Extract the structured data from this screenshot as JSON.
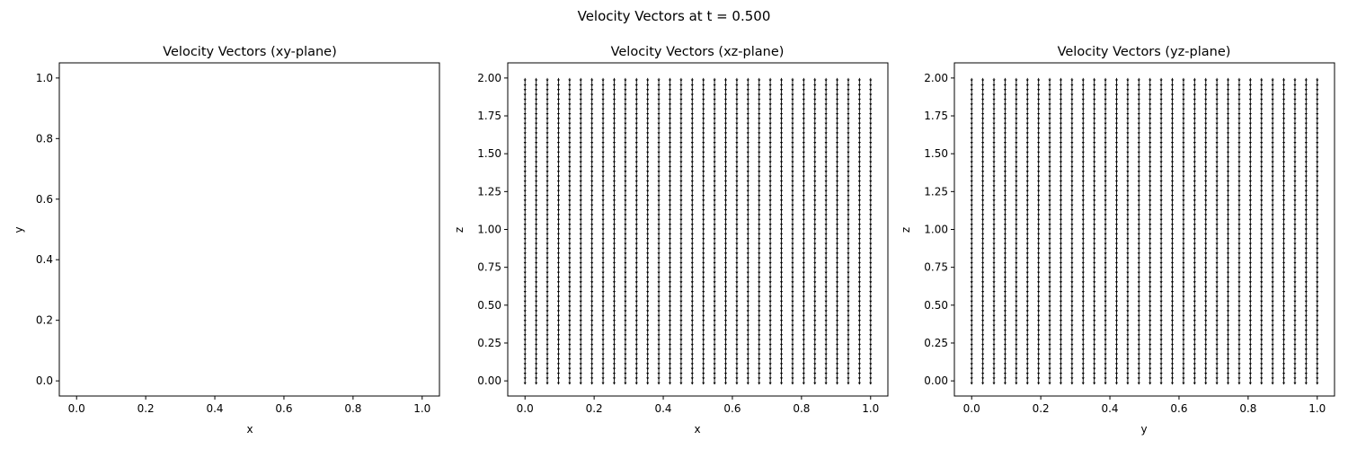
{
  "figure_title": "Velocity Vectors at t = 0.500",
  "colors": {
    "axes": "#000000",
    "arrow": "#000000",
    "background": "#ffffff"
  },
  "chart_data": [
    {
      "type": "quiver",
      "title": "Velocity Vectors (xy-plane)",
      "xlabel": "x",
      "ylabel": "y",
      "xlim": [
        -0.05,
        1.05
      ],
      "ylim": [
        -0.05,
        1.05
      ],
      "xticks": [
        "0.0",
        "0.2",
        "0.4",
        "0.6",
        "0.8",
        "1.0"
      ],
      "yticks": [
        "0.0",
        "0.2",
        "0.4",
        "0.6",
        "0.8",
        "1.0"
      ],
      "grid": false,
      "vectors": {
        "x_range": [
          0,
          1
        ],
        "x_count": 0,
        "y_range": [
          0,
          1
        ],
        "y_count": 0,
        "direction": "none",
        "note_visible": false
      }
    },
    {
      "type": "quiver",
      "title": "Velocity Vectors (xz-plane)",
      "xlabel": "x",
      "ylabel": "z",
      "xlim": [
        -0.05,
        1.05
      ],
      "ylim": [
        -0.1,
        2.1
      ],
      "xticks": [
        "0.0",
        "0.2",
        "0.4",
        "0.6",
        "0.8",
        "1.0"
      ],
      "yticks": [
        "0.00",
        "0.25",
        "0.50",
        "0.75",
        "1.00",
        "1.25",
        "1.50",
        "1.75",
        "2.00"
      ],
      "grid": false,
      "vectors": {
        "x_range": [
          0,
          1
        ],
        "x_count": 32,
        "y_range": [
          0,
          2
        ],
        "y_count": 64,
        "direction": "down"
      }
    },
    {
      "type": "quiver",
      "title": "Velocity Vectors (yz-plane)",
      "xlabel": "y",
      "ylabel": "z",
      "xlim": [
        -0.05,
        1.05
      ],
      "ylim": [
        -0.1,
        2.1
      ],
      "xticks": [
        "0.0",
        "0.2",
        "0.4",
        "0.6",
        "0.8",
        "1.0"
      ],
      "yticks": [
        "0.00",
        "0.25",
        "0.50",
        "0.75",
        "1.00",
        "1.25",
        "1.50",
        "1.75",
        "2.00"
      ],
      "grid": false,
      "vectors": {
        "x_range": [
          0,
          1
        ],
        "x_count": 32,
        "y_range": [
          0,
          2
        ],
        "y_count": 64,
        "direction": "down"
      }
    }
  ]
}
